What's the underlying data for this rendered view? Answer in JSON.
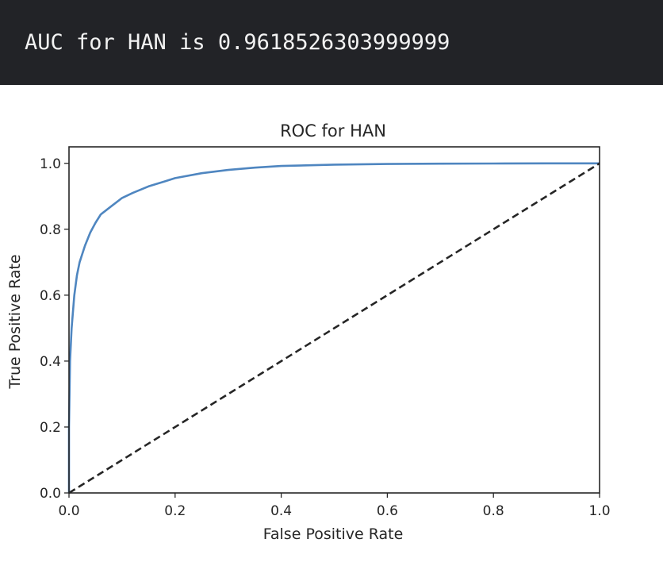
{
  "output": {
    "text": "AUC for HAN is 0.9618526303999999"
  },
  "colors": {
    "output_background": "#222327",
    "output_text": "#f2f2f2",
    "roc_curve": "#4f86c0",
    "diagonal": "#262626"
  },
  "chart_data": {
    "type": "line",
    "title": "ROC for HAN",
    "xlabel": "False Positive Rate",
    "ylabel": "True Positive Rate",
    "xlim": [
      0.0,
      1.0
    ],
    "ylim": [
      0.0,
      1.05
    ],
    "xticks": [
      0.0,
      0.2,
      0.4,
      0.6,
      0.8,
      1.0
    ],
    "yticks": [
      0.0,
      0.2,
      0.4,
      0.6,
      0.8,
      1.0
    ],
    "xtick_labels": [
      "0.0",
      "0.2",
      "0.4",
      "0.6",
      "0.8",
      "1.0"
    ],
    "ytick_labels": [
      "0.0",
      "0.2",
      "0.4",
      "0.6",
      "0.8",
      "1.0"
    ],
    "grid": false,
    "series": [
      {
        "style": "solid",
        "x": [
          0.0,
          0.0,
          0.002,
          0.005,
          0.01,
          0.015,
          0.02,
          0.03,
          0.04,
          0.05,
          0.06,
          0.08,
          0.1,
          0.12,
          0.15,
          0.18,
          0.2,
          0.25,
          0.3,
          0.35,
          0.4,
          0.5,
          0.6,
          0.7,
          0.8,
          0.9,
          1.0
        ],
        "y": [
          0.0,
          0.2,
          0.4,
          0.5,
          0.6,
          0.66,
          0.7,
          0.75,
          0.79,
          0.82,
          0.845,
          0.87,
          0.895,
          0.91,
          0.93,
          0.945,
          0.955,
          0.97,
          0.98,
          0.987,
          0.992,
          0.996,
          0.998,
          0.999,
          0.9995,
          1.0,
          1.0
        ]
      },
      {
        "style": "dashed",
        "x": [
          0.0,
          1.0
        ],
        "y": [
          0.0,
          1.0
        ]
      }
    ]
  }
}
